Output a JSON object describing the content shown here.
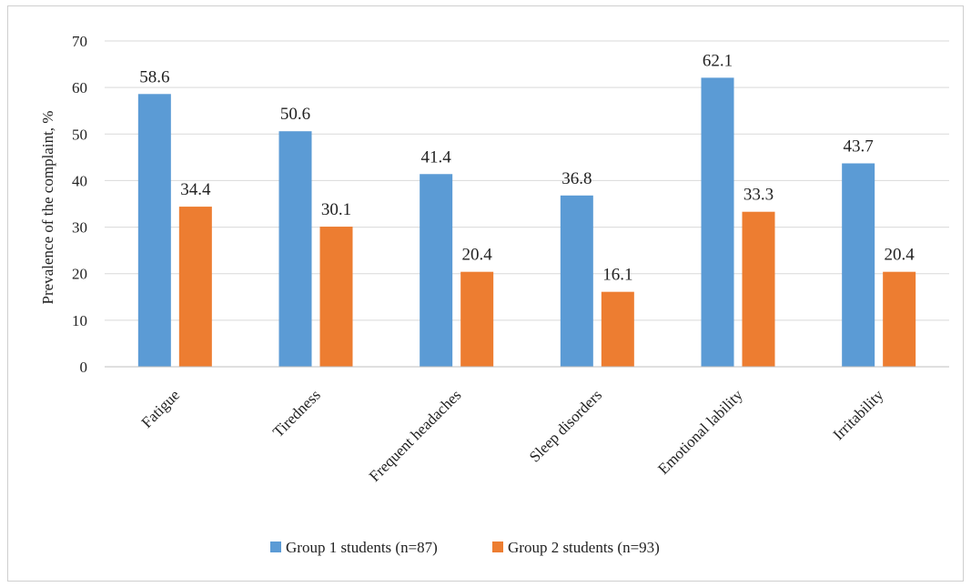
{
  "chart_data": {
    "type": "bar",
    "categories": [
      "Fatigue",
      "Tiredness",
      "Frequent headaches",
      "Sleep disorders",
      "Emotional lability",
      "Irritability"
    ],
    "series": [
      {
        "name": "Group 1 students (n=87)",
        "values": [
          58.6,
          50.6,
          41.4,
          36.8,
          62.1,
          43.7
        ],
        "labels": [
          "58.6",
          "50.6",
          "41.4",
          "36.8",
          "62.1",
          "43.7"
        ],
        "color": "#5b9bd5"
      },
      {
        "name": "Group 2 students (n=93)",
        "values": [
          34.4,
          30.1,
          20.4,
          16.1,
          33.3,
          20.4
        ],
        "labels": [
          "34.4",
          "30.1",
          "20.4",
          "16.1",
          "33.3",
          "20.4"
        ],
        "color": "#ed7d31"
      }
    ],
    "title": "",
    "xlabel": "",
    "ylabel": "Prevalence of the complaint, %",
    "ylim": [
      0,
      70
    ],
    "yticks": [
      "0",
      "10",
      "20",
      "30",
      "40",
      "50",
      "60",
      "70"
    ],
    "grid": true,
    "legend_position": "bottom"
  }
}
